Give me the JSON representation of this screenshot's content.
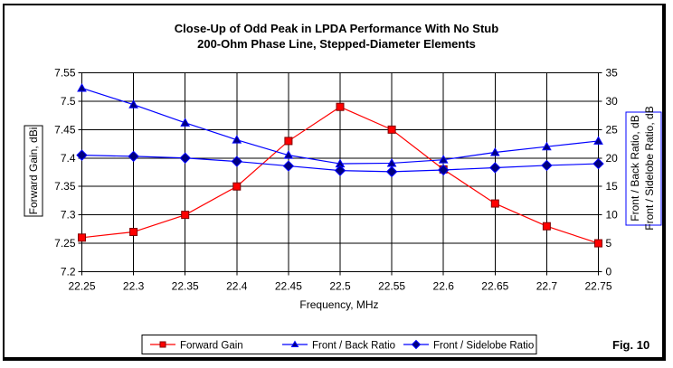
{
  "figure_label": "Fig. 10",
  "colors": {
    "forward_gain_line": "#ff0000",
    "forward_gain_marker_fill": "#ff0000",
    "forward_gain_marker_edge": "#800000",
    "blue_line": "#0000ff",
    "blue_marker_fill": "#000080",
    "grid": "#000000",
    "background": "#ffffff"
  },
  "chart_data": {
    "type": "line",
    "title_line1": "Close-Up of Odd Peak in LPDA Performance With No Stub",
    "title_line2": "200-Ohm Phase Line, Stepped-Diameter Elements",
    "xlabel": "Frequency, MHz",
    "ylabel_left": "Forward Gain, dBi",
    "ylabel_right_line1": "Front / Back Ratio,  dB",
    "ylabel_right_line2": "Front / Sidelobe Ratio,  dB",
    "grid": true,
    "legend_position": "bottom",
    "x": [
      22.25,
      22.3,
      22.35,
      22.4,
      22.45,
      22.5,
      22.55,
      22.6,
      22.65,
      22.7,
      22.75
    ],
    "x_tick_labels": [
      "22.25",
      "22.3",
      "22.35",
      "22.4",
      "22.45",
      "22.5",
      "22.55",
      "22.6",
      "22.65",
      "22.7",
      "22.75"
    ],
    "left_axis": {
      "min": 7.2,
      "max": 7.55,
      "tick_labels": [
        "7.2",
        "7.25",
        "7.3",
        "7.35",
        "7.4",
        "7.45",
        "7.5",
        "7.55"
      ]
    },
    "right_axis": {
      "min": 0,
      "max": 35,
      "tick_labels": [
        "0",
        "5",
        "10",
        "15",
        "20",
        "25",
        "30",
        "35"
      ]
    },
    "series": [
      {
        "name": "Forward Gain",
        "axis": "left",
        "marker": "square",
        "line_color": "#ff0000",
        "marker_fill": "#ff0000",
        "marker_edge": "#800000",
        "values": [
          7.26,
          7.27,
          7.3,
          7.35,
          7.43,
          7.49,
          7.45,
          7.38,
          7.32,
          7.28,
          7.25
        ]
      },
      {
        "name": "Front / Back Ratio",
        "axis": "right",
        "marker": "triangle",
        "line_color": "#0000ff",
        "marker_fill": "#000080",
        "marker_edge": "#0000ff",
        "values": [
          32.3,
          29.4,
          26.2,
          23.2,
          20.5,
          19.0,
          19.1,
          19.7,
          21.0,
          22.0,
          23.0
        ]
      },
      {
        "name": "Front / Sidelobe Ratio",
        "axis": "right",
        "marker": "diamond",
        "line_color": "#0000ff",
        "marker_fill": "#000080",
        "marker_edge": "#0000ff",
        "values": [
          20.5,
          20.3,
          20.0,
          19.4,
          18.6,
          17.8,
          17.6,
          17.9,
          18.3,
          18.7,
          19.0
        ]
      }
    ]
  }
}
